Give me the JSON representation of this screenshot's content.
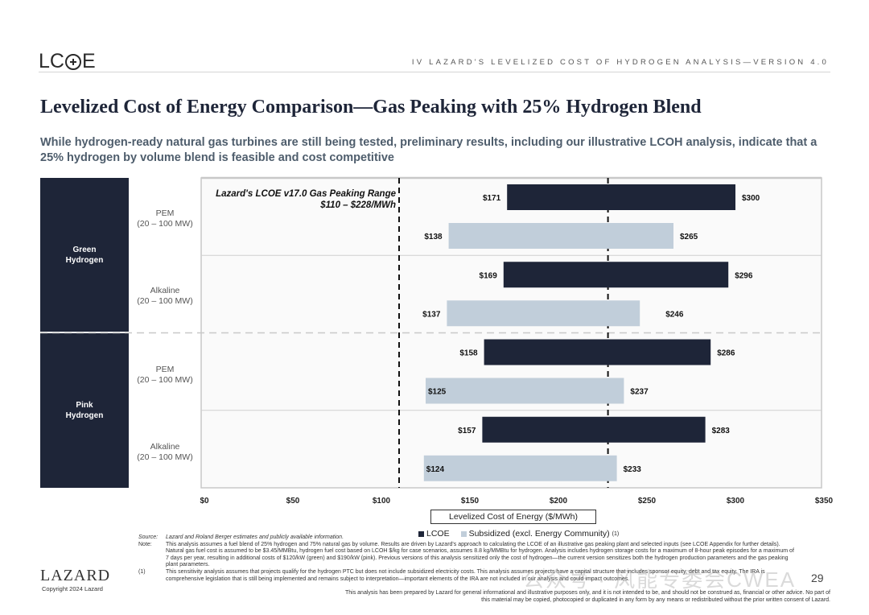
{
  "header": {
    "logo_text_left": "LC",
    "logo_text_right": "E",
    "section_label": "IV   LAZARD'S LEVELIZED COST OF HYDROGEN ANALYSIS—VERSION 4.0"
  },
  "title": "Levelized Cost of Energy Comparison—Gas Peaking with 25% Hydrogen Blend",
  "subtitle": "While hydrogen-ready natural gas turbines are still being tested, preliminary results, including our illustrative LCOH analysis, indicate that a 25% hydrogen by volume blend is feasible and cost competitive",
  "groups": [
    {
      "label_line1": "Green",
      "label_line2": "Hydrogen"
    },
    {
      "label_line1": "Pink",
      "label_line2": "Hydrogen"
    }
  ],
  "technologies": [
    {
      "line1": "PEM",
      "line2": "(20 – 100 MW)"
    },
    {
      "line1": "Alkaline",
      "line2": "(20 – 100 MW)"
    },
    {
      "line1": "PEM",
      "line2": "(20 – 100 MW)"
    },
    {
      "line1": "Alkaline",
      "line2": "(20 – 100 MW)"
    }
  ],
  "chart_data": {
    "type": "bar",
    "orientation": "horizontal-floating-range",
    "title": "",
    "xlabel": "Levelized Cost of Energy ($/MWh)",
    "ylabel": "",
    "xlim": [
      0,
      350
    ],
    "x_ticks": [
      0,
      50,
      100,
      150,
      200,
      250,
      300,
      350
    ],
    "x_tick_labels": [
      "$0",
      "$50",
      "$100",
      "$150",
      "$200",
      "$250",
      "$300",
      "$350"
    ],
    "categories": [
      "Green Hydrogen – PEM (20 – 100 MW)",
      "Green Hydrogen – Alkaline (20 – 100 MW)",
      "Pink Hydrogen – PEM (20 – 100 MW)",
      "Pink Hydrogen – Alkaline (20 – 100 MW)"
    ],
    "series": [
      {
        "name": "LCOE",
        "color": "#1e2538",
        "low": [
          171,
          169,
          158,
          157
        ],
        "high": [
          300,
          296,
          286,
          283
        ],
        "low_labels": [
          "$171",
          "$169",
          "$158",
          "$157"
        ],
        "high_labels": [
          "$300",
          "$296",
          "$286",
          "$283"
        ]
      },
      {
        "name": "Subsidized (excl. Energy Community)",
        "color": "#c1ceda",
        "low": [
          138,
          137,
          125,
          124
        ],
        "high": [
          265,
          246,
          237,
          233
        ],
        "low_labels": [
          "$138",
          "$137",
          "$125",
          "$124"
        ],
        "high_labels": [
          "$265",
          "$246",
          "$237",
          "$233"
        ]
      }
    ],
    "reference_range": {
      "label_line1": "Lazard's LCOE v17.0 Gas Peaking Range",
      "label_line2": "$110 – $228/MWh",
      "low": 110,
      "high": 228
    },
    "legend": "bottom-center",
    "grid": false
  },
  "legend": {
    "lcoe": "LCOE",
    "subsidized": "Subsidized (excl. Energy Community)",
    "subsidized_sup": "(1)"
  },
  "notes": {
    "source_key": "Source:",
    "source_text": "Lazard and Roland Berger estimates and publicly available information.",
    "note_key": "Note:",
    "note_text": "This analysis assumes a fuel blend of 25% hydrogen and 75% natural gas by volume. Results are driven by Lazard's approach to calculating the LCOE of an illustrative gas peaking plant and selected inputs (see LCOE Appendix for further details). Natural gas fuel cost is assumed to be $3.45/MMBtu, hydrogen fuel cost based on LCOH $/kg for case scenarios, assumes 8.8 kg/MMBtu for hydrogen. Analysis includes hydrogen storage costs for a maximum of 8-hour peak episodes for a maximum of 7 days per year, resulting in additional costs of $120/kW (green) and $190/kW (pink). Previous versions of this analysis sensitized only the cost of hydrogen—the current version sensitizes both the hydrogen production parameters and the gas peaking plant parameters.",
    "fn1_key": "(1)",
    "fn1_text": "This sensitivity analysis assumes that projects qualify for the hydrogen PTC but does not include subsidized electricity costs. This analysis assumes projects have a capital structure that includes sponsor equity, debt and tax equity. The IRA is comprehensive legislation that is still being implemented and remains subject to interpretation—important elements of the IRA are not included in our analysis and could impact outcomes.",
    "disclaimer": "This analysis has been prepared by Lazard for general informational and illustrative purposes only, and it is not intended to be, and should not be construed as, financial or other advice. No part of this material may be copied, photocopied or duplicated in any form by any means or redistributed without the prior written consent of Lazard."
  },
  "footer": {
    "brand": "LAZARD",
    "copyright": "Copyright 2024 Lazard",
    "page_number": "29",
    "watermark": "公众号 · 风能专委会CWEA"
  }
}
